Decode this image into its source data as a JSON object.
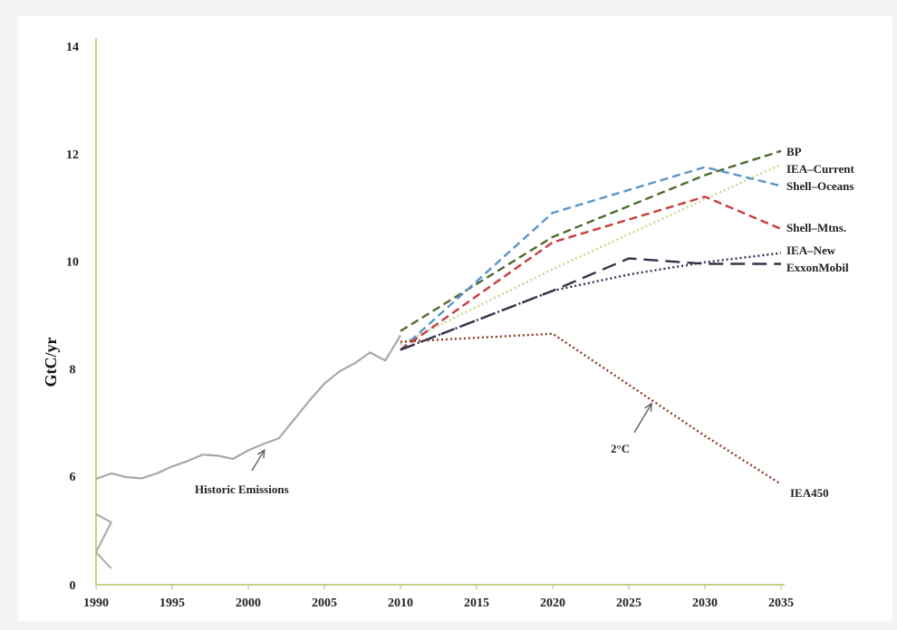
{
  "chart_data": {
    "type": "line",
    "title": "",
    "xlabel": "",
    "ylabel": "GtC/yr",
    "xlim": [
      1990,
      2035
    ],
    "ylim": [
      0,
      14
    ],
    "y_axis_break": "between 0 and 6",
    "x_ticks": [
      "1990",
      "1995",
      "2000",
      "2005",
      "2010",
      "2015",
      "2020",
      "2025",
      "2030",
      "2035"
    ],
    "y_ticks": [
      "0",
      "6",
      "8",
      "10",
      "12",
      "14"
    ],
    "grid": false,
    "legend": "labels at line ends (right)",
    "series": [
      {
        "name": "Historic Emissions",
        "color": "#a8a8a8",
        "style": "solid",
        "x": [
          1990,
          1991,
          1992,
          1993,
          1994,
          1995,
          1996,
          1997,
          1998,
          1999,
          2000,
          2001,
          2002,
          2003,
          2004,
          2005,
          2006,
          2007,
          2008,
          2009,
          2010
        ],
        "y": [
          5.95,
          6.05,
          5.98,
          5.96,
          6.05,
          6.18,
          6.28,
          6.4,
          6.38,
          6.32,
          6.48,
          6.6,
          6.7,
          7.05,
          7.4,
          7.72,
          7.95,
          8.1,
          8.3,
          8.15,
          8.62
        ]
      },
      {
        "name": "BP",
        "color": "#4f6b2f",
        "style": "dashed",
        "x": [
          2010,
          2020,
          2030,
          2035
        ],
        "y": [
          8.7,
          10.45,
          11.6,
          12.05
        ]
      },
      {
        "name": "IEA–Current",
        "color": "#c8d88a",
        "style": "dotted",
        "x": [
          2010,
          2020,
          2030,
          2035
        ],
        "y": [
          8.45,
          9.85,
          11.15,
          11.8
        ]
      },
      {
        "name": "Shell–Oceans",
        "color": "#5b94c8",
        "style": "dashed",
        "x": [
          2010,
          2020,
          2030,
          2035
        ],
        "y": [
          8.35,
          10.9,
          11.75,
          11.4
        ]
      },
      {
        "name": "Shell–Mtns.",
        "color": "#c83c3c",
        "style": "dashed",
        "x": [
          2010,
          2020,
          2030,
          2035
        ],
        "y": [
          8.35,
          10.35,
          11.2,
          10.6
        ]
      },
      {
        "name": "IEA–New",
        "color": "#2f2f4f",
        "style": "dotted",
        "x": [
          2010,
          2020,
          2025,
          2030,
          2035
        ],
        "y": [
          8.35,
          9.45,
          9.75,
          9.98,
          10.15
        ]
      },
      {
        "name": "ExxonMobil",
        "color": "#33334a",
        "style": "longdash",
        "x": [
          2010,
          2020,
          2025,
          2030,
          2035
        ],
        "y": [
          8.35,
          9.45,
          10.05,
          9.95,
          9.95
        ]
      },
      {
        "name": "IEA450",
        "color": "#8a3a22",
        "style": "dotted",
        "x": [
          2010,
          2020,
          2030,
          2035
        ],
        "y": [
          8.5,
          8.65,
          6.75,
          5.85
        ]
      }
    ],
    "sub_break_series": {
      "color": "#a8a8a8",
      "style": "solid",
      "x": [
        1990,
        1991,
        1990,
        1991
      ],
      "y": [
        1.3,
        1.15,
        0.6,
        0.3
      ]
    },
    "annotations": [
      {
        "text": "Historic Emissions",
        "target": [
          2001,
          6.62
        ]
      },
      {
        "text": "2°C",
        "target": [
          2026.5,
          7.35
        ]
      }
    ]
  }
}
